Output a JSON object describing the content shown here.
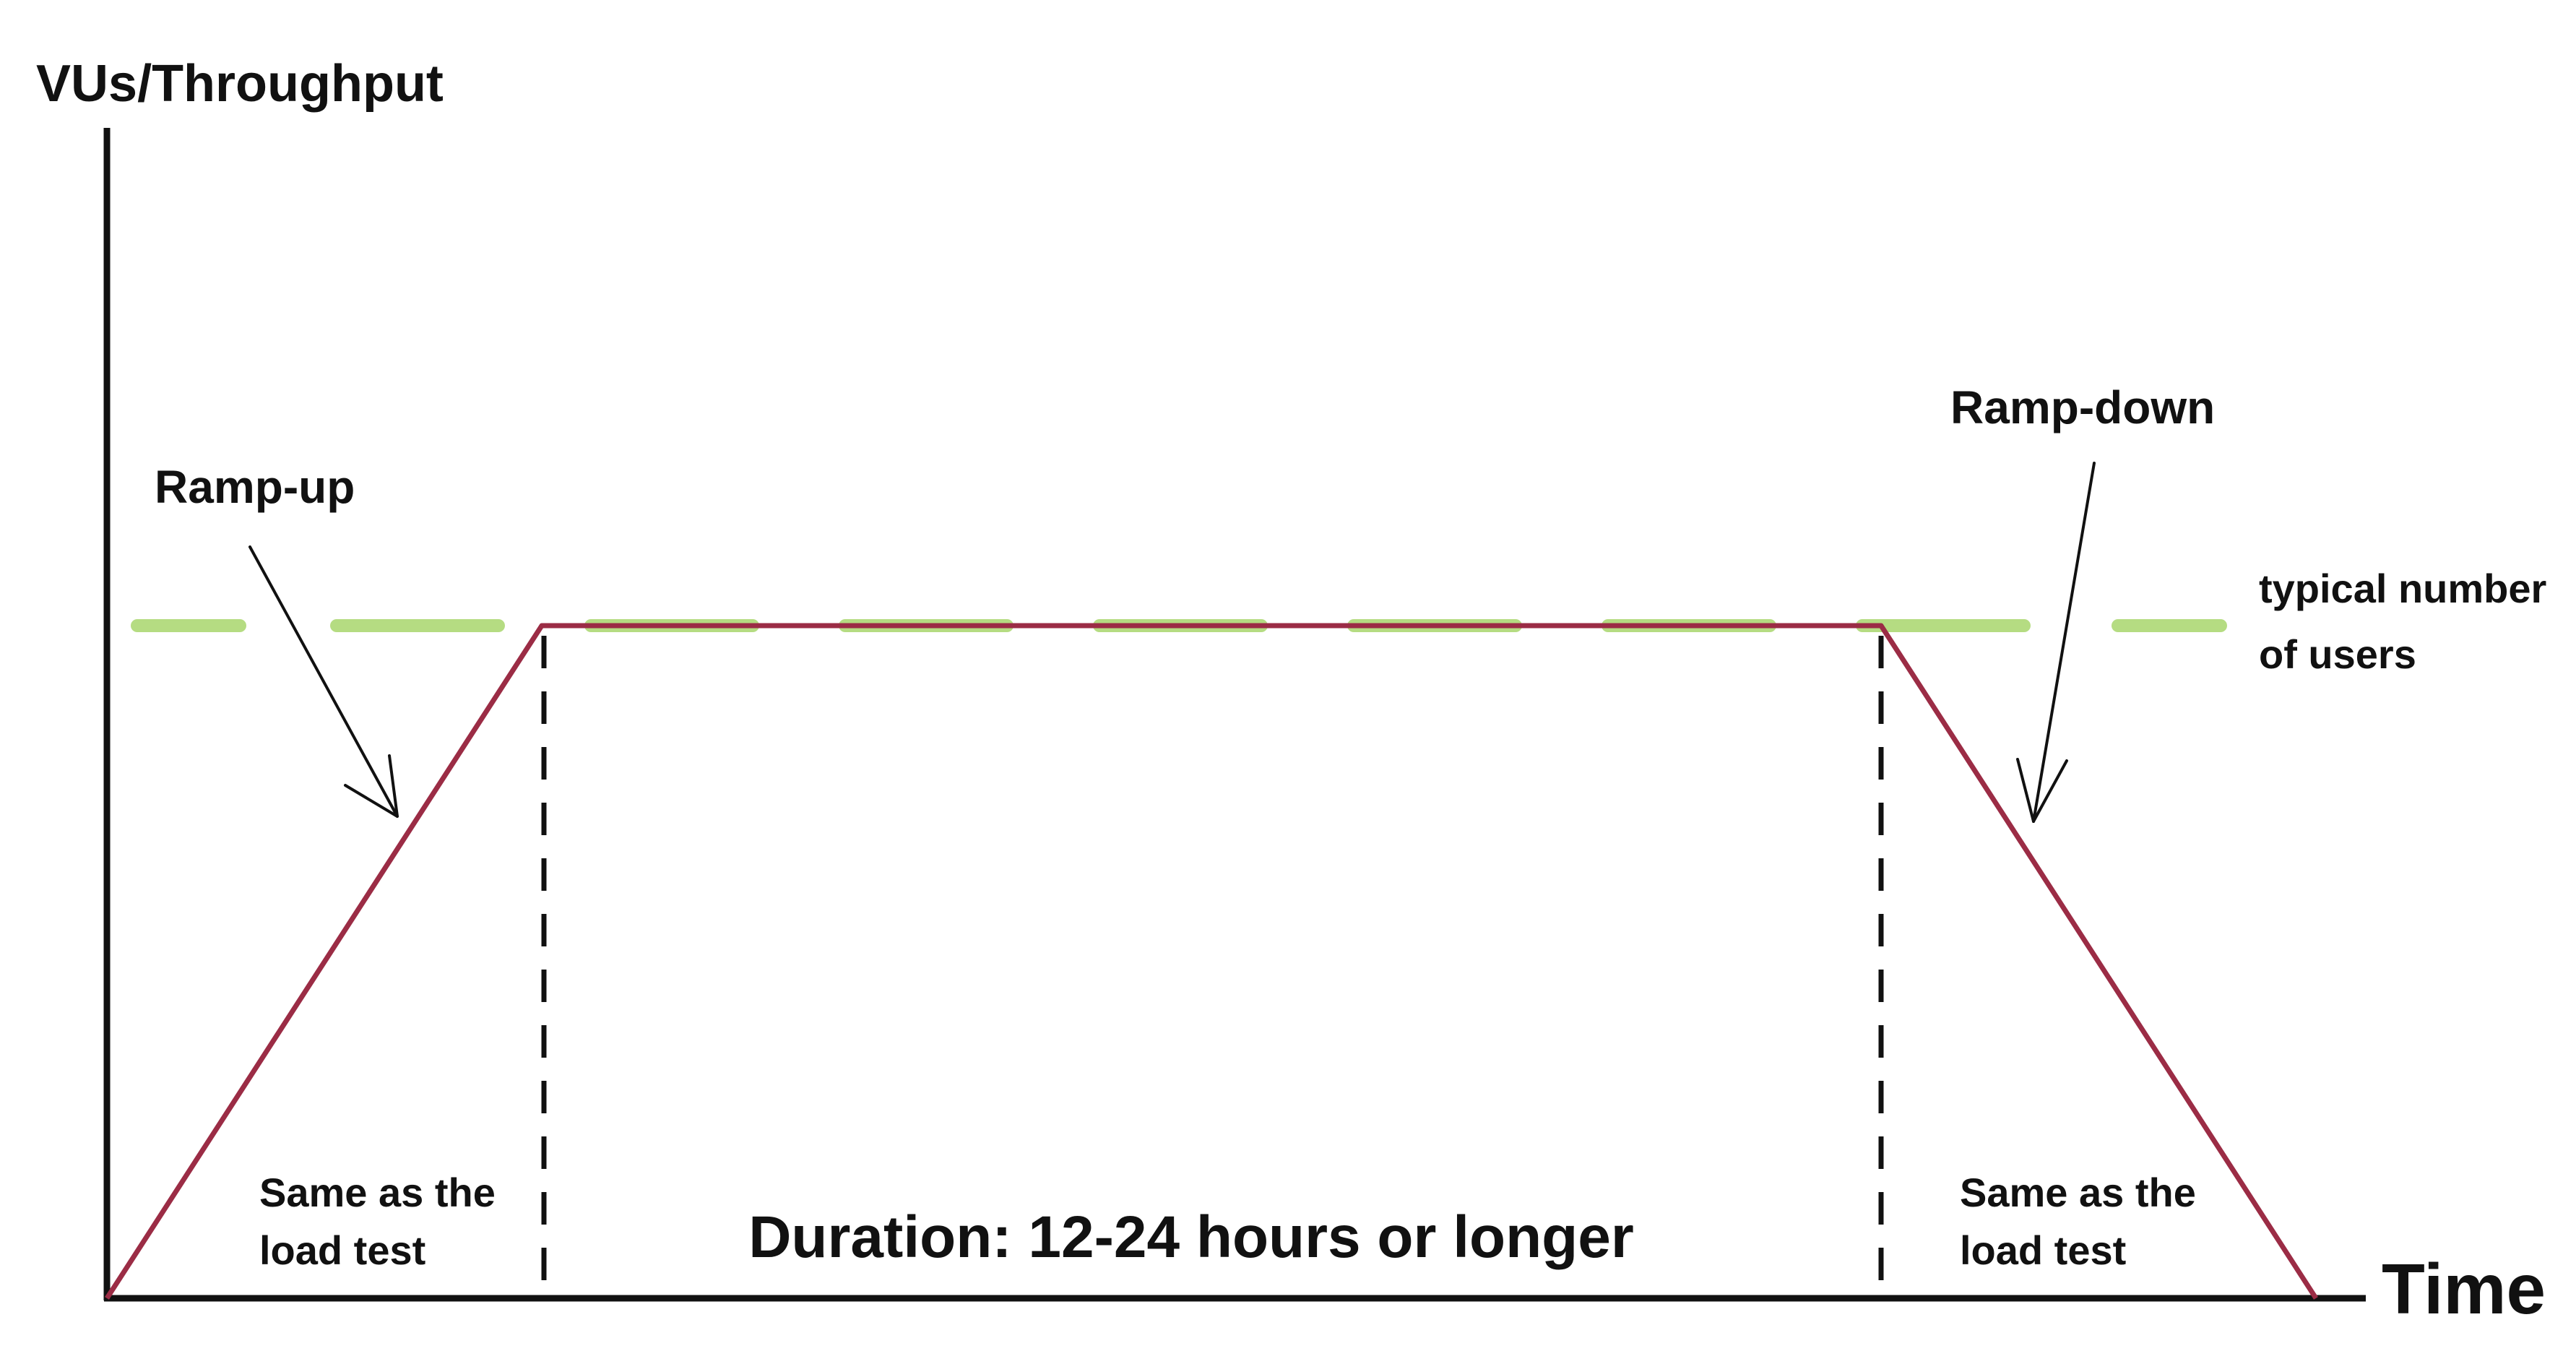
{
  "diagram": {
    "y_axis_label": "VUs/Throughput",
    "x_axis_label": "Time",
    "ramp_up_label": "Ramp-up",
    "ramp_down_label": "Ramp-down",
    "baseline_label": [
      "typical number",
      "of users"
    ],
    "ramp_up_note": [
      "Same as the",
      "load test"
    ],
    "ramp_down_note": [
      "Same as the",
      "load test"
    ],
    "duration_label": "Duration: 12-24 hours or longer"
  }
}
